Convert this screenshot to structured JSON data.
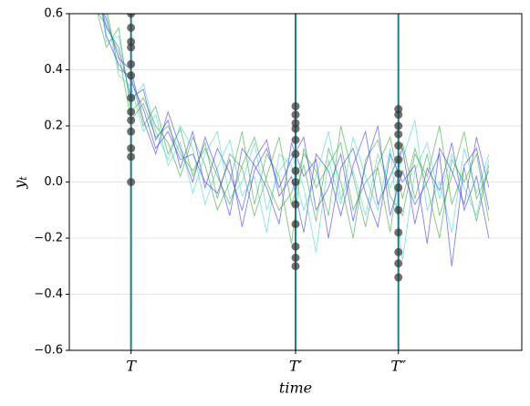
{
  "chart_data": {
    "type": "line",
    "xlabel": "time",
    "ylabel": "y",
    "ylabel_sub": "t",
    "xlim": [
      0,
      110
    ],
    "ylim": [
      -0.6,
      0.6
    ],
    "yticks": [
      {
        "value": -0.6,
        "label": "−0.6"
      },
      {
        "value": -0.4,
        "label": "−0.4"
      },
      {
        "value": -0.2,
        "label": "−0.2"
      },
      {
        "value": 0,
        "label": "0.0"
      },
      0.2,
      0.4,
      0.6
    ],
    "xticks": [
      {
        "value": 15,
        "label": "T"
      },
      {
        "value": 55,
        "label": "T′"
      },
      {
        "value": 80,
        "label": "T″"
      }
    ],
    "grid": true,
    "vline_color": "#1a7f8e",
    "line_opacity": 0.6,
    "dot_color": "#333333",
    "x": [
      6,
      9,
      12,
      15,
      18,
      21,
      24,
      27,
      30,
      33,
      36,
      39,
      42,
      45,
      48,
      51,
      54,
      57,
      60,
      63,
      66,
      69,
      72,
      75,
      78,
      81,
      84,
      87,
      90,
      93,
      96,
      99,
      102
    ],
    "series": [
      {
        "color": "#2b2bff",
        "values": [
          0.75,
          0.55,
          0.48,
          0.3,
          0.33,
          0.15,
          0.22,
          0.05,
          0.18,
          -0.02,
          0.12,
          0.03,
          -0.1,
          0.08,
          0.15,
          -0.05,
          0.02,
          -0.18,
          0.1,
          0.04,
          -0.12,
          0.06,
          0.18,
          -0.08,
          0.02,
          0.12,
          -0.15,
          0.05,
          -0.03,
          0.14,
          -0.1,
          0.02,
          -0.2
        ]
      },
      {
        "color": "#2ca02c",
        "values": [
          0.68,
          0.62,
          0.4,
          0.38,
          0.2,
          0.27,
          0.1,
          0.19,
          0.02,
          0.14,
          -0.06,
          0.1,
          0.05,
          -0.12,
          0.02,
          0.16,
          -0.08,
          0.06,
          -0.14,
          0.12,
          0.0,
          -0.2,
          0.08,
          0.15,
          -0.05,
          -0.12,
          0.1,
          0.02,
          0.2,
          -0.08,
          0.05,
          -0.14,
          0.06
        ]
      },
      {
        "color": "#30d5c8",
        "values": [
          0.8,
          0.5,
          0.52,
          0.28,
          0.35,
          0.18,
          0.08,
          0.2,
          0.12,
          -0.08,
          0.05,
          0.15,
          -0.05,
          0.02,
          -0.18,
          0.1,
          0.06,
          -0.1,
          0.02,
          0.18,
          -0.06,
          0.04,
          -0.12,
          0.1,
          -0.02,
          0.08,
          0.22,
          -0.1,
          0.0,
          -0.18,
          0.12,
          -0.04,
          0.1
        ]
      },
      {
        "color": "#2b2bff",
        "values": [
          0.7,
          0.58,
          0.44,
          0.4,
          0.22,
          0.1,
          0.25,
          0.12,
          0.0,
          0.16,
          0.04,
          -0.12,
          0.12,
          0.06,
          -0.02,
          -0.15,
          0.14,
          0.02,
          0.08,
          -0.2,
          0.05,
          0.12,
          -0.04,
          -0.16,
          0.1,
          0.0,
          0.06,
          -0.22,
          0.12,
          0.04,
          -0.08,
          0.16,
          -0.02
        ]
      },
      {
        "color": "#2ca02c",
        "values": [
          0.65,
          0.48,
          0.55,
          0.25,
          0.3,
          0.2,
          0.14,
          0.02,
          0.16,
          0.06,
          -0.1,
          0.0,
          0.18,
          -0.08,
          0.1,
          0.02,
          -0.22,
          0.12,
          -0.02,
          0.06,
          0.14,
          -0.1,
          0.0,
          0.05,
          -0.18,
          0.14,
          -0.06,
          0.1,
          -0.12,
          0.02,
          0.18,
          -0.06,
          0.04
        ]
      },
      {
        "color": "#30d5c8",
        "values": [
          0.72,
          0.6,
          0.38,
          0.34,
          0.18,
          0.24,
          0.06,
          0.14,
          -0.04,
          0.1,
          0.18,
          -0.06,
          0.0,
          0.14,
          -0.1,
          0.04,
          0.1,
          -0.02,
          -0.25,
          0.08,
          -0.08,
          0.16,
          0.02,
          -0.1,
          0.12,
          -0.28,
          0.04,
          0.14,
          -0.06,
          0.1,
          -0.02,
          -0.12,
          0.08
        ]
      },
      {
        "color": "#2b2bff",
        "values": [
          0.78,
          0.52,
          0.42,
          0.36,
          0.26,
          0.12,
          0.18,
          0.08,
          0.1,
          0.0,
          -0.04,
          0.08,
          -0.16,
          0.04,
          0.12,
          -0.02,
          0.08,
          0.16,
          -0.1,
          -0.02,
          0.1,
          -0.14,
          0.06,
          0.2,
          -0.12,
          0.04,
          -0.08,
          0.0,
          0.1,
          -0.3,
          0.06,
          0.12,
          -0.1
        ]
      },
      {
        "color": "#2ca02c",
        "values": [
          0.62,
          0.56,
          0.46,
          0.22,
          0.28,
          0.16,
          0.2,
          0.1,
          0.04,
          0.12,
          0.02,
          -0.08,
          0.06,
          0.16,
          0.0,
          -0.1,
          -0.04,
          0.1,
          0.04,
          -0.12,
          0.2,
          0.02,
          -0.16,
          0.06,
          0.16,
          -0.06,
          0.12,
          -0.02,
          -0.2,
          0.08,
          0.0,
          0.1,
          -0.14
        ]
      }
    ],
    "dots": [
      {
        "x": 15,
        "values": [
          0.0,
          0.09,
          0.12,
          0.18,
          0.22,
          0.25,
          0.3,
          0.38,
          0.42,
          0.48,
          0.5,
          0.55,
          0.6
        ]
      },
      {
        "x": 55,
        "values": [
          -0.3,
          -0.27,
          -0.23,
          -0.15,
          -0.08,
          0.0,
          0.04,
          0.1,
          0.15,
          0.19,
          0.21,
          0.24,
          0.27
        ]
      },
      {
        "x": 80,
        "values": [
          -0.34,
          -0.29,
          -0.25,
          -0.18,
          -0.1,
          -0.02,
          0.03,
          0.08,
          0.13,
          0.17,
          0.2,
          0.24,
          0.26
        ]
      }
    ]
  }
}
